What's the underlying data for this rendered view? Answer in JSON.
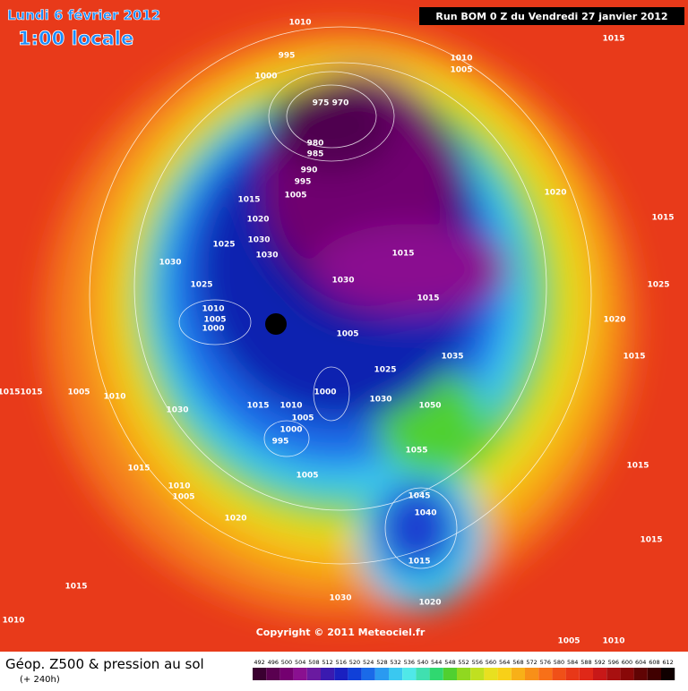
{
  "header": {
    "date": "Lundi 6 février 2012",
    "time": "1:00 locale",
    "run": "Run BOM 0 Z du Vendredi 27 janvier 2012"
  },
  "copyright": "Copyright © 2011 Meteociel.fr",
  "footer": {
    "title": "Géop. Z500 & pression au sol",
    "lead": "(+ 240h)"
  },
  "isobar_labels": [
    1010,
    995,
    1000,
    1010,
    1005,
    1015,
    975,
    970,
    980,
    985,
    990,
    995,
    1005,
    1015,
    1020,
    1020,
    1015,
    1025,
    1030,
    1030,
    1030,
    1015,
    1025,
    1030,
    1015,
    1025,
    1010,
    1005,
    1000,
    1020,
    1005,
    1035,
    1015,
    1025,
    1015,
    1015,
    1005,
    1010,
    1000,
    1030,
    1050,
    1030,
    1015,
    1010,
    1005,
    1000,
    995,
    1055,
    1015,
    1015,
    1010,
    1005,
    1005,
    1045,
    1040,
    1020,
    1015,
    1015,
    1015,
    1030,
    1020,
    1010,
    1005,
    1010
  ],
  "scale": {
    "values": [
      492,
      496,
      500,
      504,
      508,
      512,
      516,
      520,
      524,
      528,
      532,
      536,
      540,
      544,
      548,
      552,
      556,
      560,
      564,
      568,
      572,
      576,
      580,
      584,
      588,
      592,
      596,
      600,
      604,
      608,
      612
    ],
    "colors": [
      "#3a0030",
      "#5a0050",
      "#740070",
      "#8a1090",
      "#6a1aa0",
      "#3a1ab0",
      "#1a20c0",
      "#1040d8",
      "#1a6ae8",
      "#2a9af0",
      "#3ac8f0",
      "#50e8e8",
      "#40e0b0",
      "#30d870",
      "#50d030",
      "#90d820",
      "#c0e020",
      "#e8e020",
      "#f8d018",
      "#f8b018",
      "#f89018",
      "#f87018",
      "#f05018",
      "#e83818",
      "#e02818",
      "#c81818",
      "#a81010",
      "#880808",
      "#600404",
      "#400000",
      "#100000"
    ]
  }
}
